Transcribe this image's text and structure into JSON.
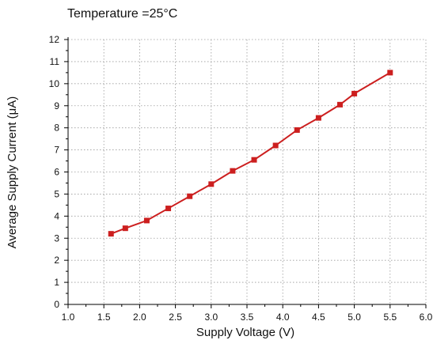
{
  "chart_data": {
    "type": "line",
    "title": "Temperature =25°C",
    "xlabel": "Supply Voltage (V)",
    "ylabel": "Average Supply Current (μA)",
    "xlim": [
      1.0,
      6.0
    ],
    "ylim": [
      0,
      12
    ],
    "x_ticks": [
      "1.0",
      "1.5",
      "2.0",
      "2.5",
      "3.0",
      "3.5",
      "4.0",
      "4.5",
      "5.0",
      "5.5",
      "6.0"
    ],
    "y_ticks": [
      "0",
      "1",
      "2",
      "3",
      "4",
      "5",
      "6",
      "7",
      "8",
      "9",
      "10",
      "11",
      "12"
    ],
    "grid": true,
    "series": [
      {
        "color": "#cc1f1f",
        "marker": "square",
        "x": [
          1.6,
          1.8,
          2.1,
          2.4,
          2.7,
          3.0,
          3.3,
          3.6,
          3.9,
          4.2,
          4.5,
          4.8,
          5.0,
          5.5
        ],
        "y": [
          3.2,
          3.45,
          3.8,
          4.35,
          4.9,
          5.45,
          6.05,
          6.55,
          7.2,
          7.9,
          8.45,
          9.05,
          9.55,
          10.5
        ]
      }
    ]
  }
}
